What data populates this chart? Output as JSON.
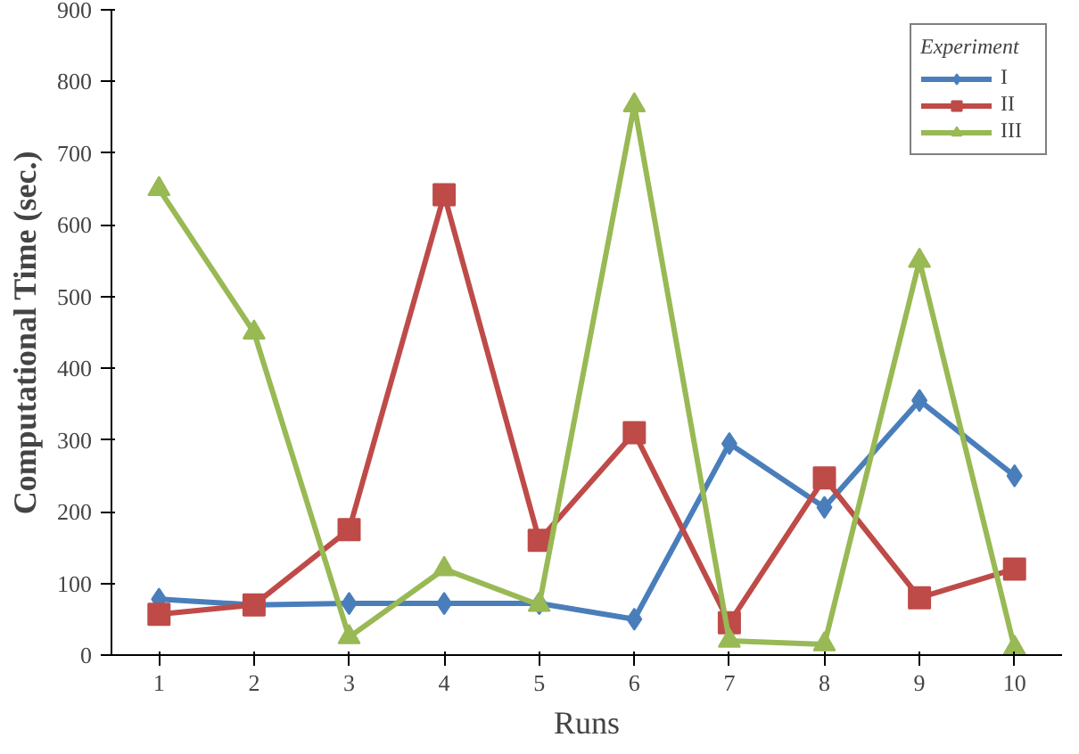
{
  "chart_data": {
    "type": "line",
    "xlabel": "Runs",
    "ylabel": "Computational Time (sec.)",
    "legend_title": "Experiment",
    "categories": [
      "1",
      "2",
      "3",
      "4",
      "5",
      "6",
      "7",
      "8",
      "9",
      "10"
    ],
    "ylim": [
      0,
      900
    ],
    "yticks": [
      0,
      100,
      200,
      300,
      400,
      500,
      600,
      700,
      800,
      900
    ],
    "grid": false,
    "legend": "top right",
    "line_style": "solid",
    "series": [
      {
        "name": "I",
        "color": "#4a7ebb",
        "marker": "diamond",
        "values": [
          78,
          70,
          72,
          72,
          72,
          50,
          295,
          206,
          355,
          250
        ]
      },
      {
        "name": "II",
        "color": "#be4b48",
        "marker": "square",
        "values": [
          57,
          70,
          175,
          642,
          160,
          310,
          45,
          247,
          80,
          120
        ]
      },
      {
        "name": "III",
        "color": "#98b954",
        "marker": "triangle",
        "values": [
          650,
          450,
          25,
          120,
          70,
          767,
          20,
          15,
          550,
          10
        ]
      }
    ]
  }
}
